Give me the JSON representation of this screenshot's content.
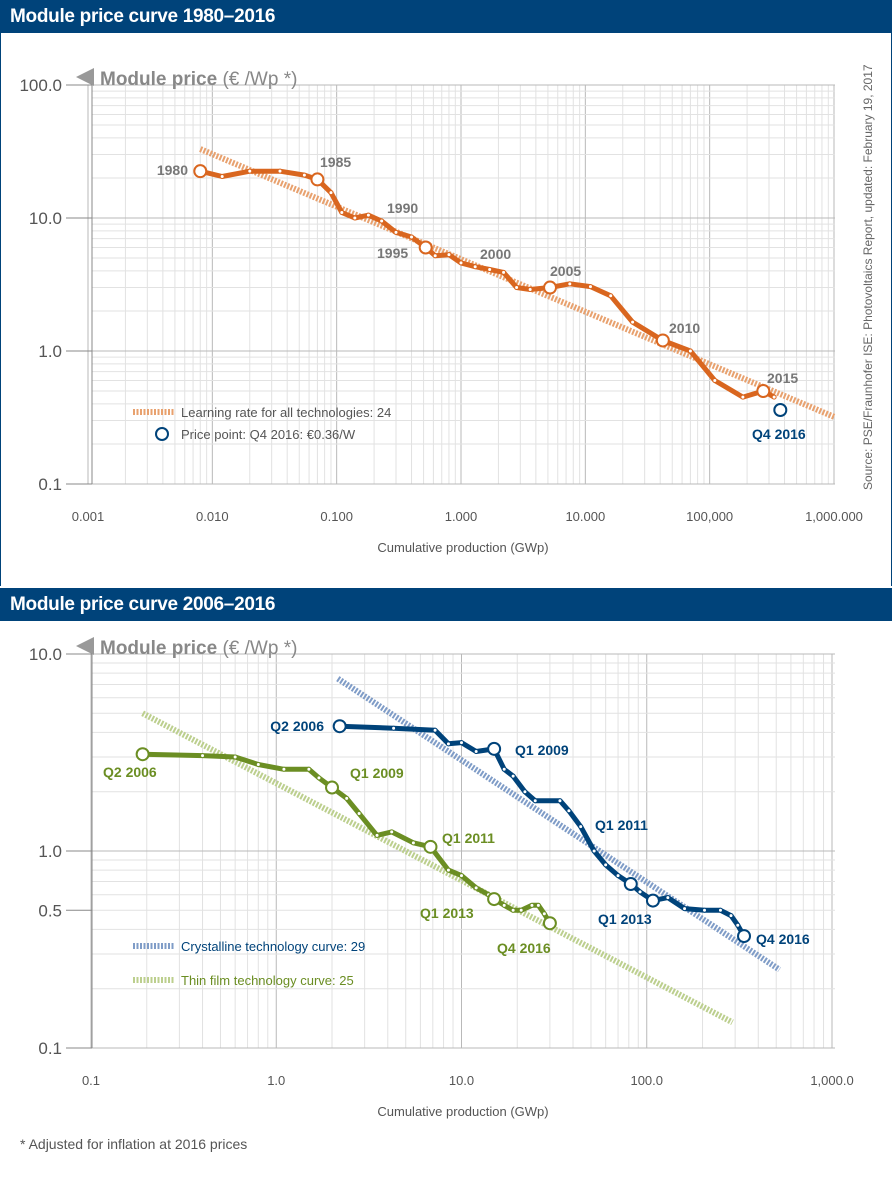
{
  "chart1": {
    "header": "Module price curve 1980–2016",
    "y_title_bold": "Module price",
    "y_title_unit": " (€ /Wp *)",
    "y_ticks": [
      "100.0",
      "10.0",
      "1.0",
      "0.1"
    ],
    "x_ticks": [
      "0.001",
      "0.010",
      "0.100",
      "1.000",
      "10.000",
      "100,000",
      "1,000.000"
    ],
    "x_label": "Cumulative production (GWp)",
    "source": "Source: PSE/Fraunhofer ISE: Photovoltaics Report, updated: February 19, 2017",
    "legend": {
      "learning": "Learning rate for all technologies: 24",
      "price_point": "Price point: Q4 2016: €0.36/W"
    },
    "year_labels": [
      "1980",
      "1985",
      "1990",
      "1995",
      "2000",
      "2005",
      "2010",
      "2015"
    ],
    "q4_label": "Q4 2016",
    "colors": {
      "orange": "#d9661f",
      "orange_trend": "#e8a16e",
      "navy": "#00437a",
      "grid": "#d8d8d8"
    }
  },
  "chart2": {
    "header": "Module price curve 2006–2016",
    "y_title_bold": "Module price",
    "y_title_unit": " (€ /Wp *)",
    "y_ticks": [
      "10.0",
      "1.0",
      "0.5",
      "0.1"
    ],
    "x_ticks": [
      "0.1",
      "1.0",
      "10.0",
      "100.0",
      "1,000.0"
    ],
    "x_label": "Cumulative production (GWp)",
    "legend": {
      "crystalline": "Crystalline technology curve: 29",
      "thin_film": "Thin film technology curve: 25"
    },
    "cryst_labels": [
      "Q2 2006",
      "Q1 2009",
      "Q1 2011",
      "Q1 2013",
      "Q4 2016"
    ],
    "thin_labels": [
      "Q2 2006",
      "Q1 2009",
      "Q1 2011",
      "Q1 2013",
      "Q4 2016"
    ],
    "colors": {
      "navy": "#00437a",
      "navy_trend": "#7f9cc7",
      "green": "#6b8e23",
      "green_trend": "#bccf8e"
    }
  },
  "footnote": "* Adjusted for inflation at 2016 prices",
  "chart_data": [
    {
      "type": "line",
      "title": "Module price curve 1980–2016",
      "xlabel": "Cumulative production (GWp)",
      "ylabel": "Module price (€ /Wp *)",
      "x_scale": "log",
      "y_scale": "log",
      "xlim": [
        0.001,
        1000
      ],
      "ylim": [
        0.1,
        100
      ],
      "grid": true,
      "legend_position": "bottom-left",
      "series": [
        {
          "name": "",
          "points": [
            [
              0.008,
              22.5
            ],
            [
              0.012,
              20.5
            ],
            [
              0.02,
              22.5
            ],
            [
              0.035,
              22.5
            ],
            [
              0.055,
              21
            ],
            [
              0.07,
              19.5
            ],
            [
              0.09,
              15.5
            ],
            [
              0.11,
              11
            ],
            [
              0.14,
              10
            ],
            [
              0.18,
              10.5
            ],
            [
              0.23,
              9.5
            ],
            [
              0.3,
              7.8
            ],
            [
              0.4,
              7.2
            ],
            [
              0.52,
              6
            ],
            [
              0.62,
              5.2
            ],
            [
              0.8,
              5.3
            ],
            [
              1.0,
              4.6
            ],
            [
              1.3,
              4.3
            ],
            [
              1.7,
              4.1
            ],
            [
              2.2,
              3.9
            ],
            [
              2.8,
              3.0
            ],
            [
              3.6,
              2.9
            ],
            [
              5.2,
              3.0
            ],
            [
              7.5,
              3.2
            ],
            [
              11,
              3.05
            ],
            [
              16,
              2.6
            ],
            [
              24,
              1.65
            ],
            [
              42,
              1.2
            ],
            [
              70,
              1.0
            ],
            [
              110,
              0.6
            ],
            [
              185,
              0.45
            ],
            [
              270,
              0.5
            ],
            [
              330,
              0.45
            ]
          ]
        },
        {
          "name": "Learning rate for all technologies: 24",
          "points": [
            [
              0.008,
              33
            ],
            [
              1000,
              0.32
            ]
          ]
        },
        {
          "name": "Price point: Q4 2016: €0.36/W",
          "points": [
            [
              370,
              0.36
            ]
          ]
        }
      ]
    },
    {
      "type": "line",
      "title": "Module price curve 2006–2016",
      "xlabel": "Cumulative production (GWp)",
      "ylabel": "Module price (€ /Wp *)",
      "x_scale": "log",
      "y_scale": "log",
      "xlim": [
        0.1,
        1000
      ],
      "ylim": [
        0.1,
        10
      ],
      "grid": true,
      "legend_position": "bottom-left",
      "series": [
        {
          "name": "",
          "color": "navy",
          "points": [
            [
              2.2,
              4.3
            ],
            [
              4.3,
              4.2
            ],
            [
              7.2,
              4.1
            ],
            [
              8.5,
              3.5
            ],
            [
              10,
              3.55
            ],
            [
              12,
              3.2
            ],
            [
              15,
              3.3
            ],
            [
              17,
              2.6
            ],
            [
              19,
              2.4
            ],
            [
              22,
              2.0
            ],
            [
              25,
              1.8
            ],
            [
              34,
              1.8
            ],
            [
              38,
              1.6
            ],
            [
              44,
              1.33
            ],
            [
              52,
              1.0
            ],
            [
              60,
              0.85
            ],
            [
              70,
              0.75
            ],
            [
              82,
              0.68
            ],
            [
              92,
              0.62
            ],
            [
              108,
              0.56
            ],
            [
              130,
              0.58
            ],
            [
              160,
              0.51
            ],
            [
              205,
              0.5
            ],
            [
              250,
              0.5
            ],
            [
              285,
              0.47
            ],
            [
              310,
              0.42
            ],
            [
              335,
              0.37
            ]
          ]
        },
        {
          "name": "",
          "color": "green",
          "points": [
            [
              0.19,
              3.1
            ],
            [
              0.4,
              3.05
            ],
            [
              0.6,
              3.0
            ],
            [
              0.8,
              2.75
            ],
            [
              1.1,
              2.6
            ],
            [
              1.5,
              2.6
            ],
            [
              1.7,
              2.35
            ],
            [
              2.0,
              2.1
            ],
            [
              2.4,
              1.85
            ],
            [
              2.8,
              1.55
            ],
            [
              3.5,
              1.2
            ],
            [
              4.2,
              1.25
            ],
            [
              5.5,
              1.1
            ],
            [
              6.8,
              1.05
            ],
            [
              8.5,
              0.8
            ],
            [
              10,
              0.75
            ],
            [
              12,
              0.65
            ],
            [
              14,
              0.6
            ],
            [
              15,
              0.57
            ],
            [
              17,
              0.53
            ],
            [
              19,
              0.5
            ],
            [
              21,
              0.5
            ],
            [
              24,
              0.53
            ],
            [
              26,
              0.53
            ],
            [
              28,
              0.48
            ],
            [
              30,
              0.43
            ]
          ]
        },
        {
          "name": "Crystalline technology curve: 29",
          "points": [
            [
              2.15,
              7.5
            ],
            [
              520,
              0.25
            ]
          ]
        },
        {
          "name": "Thin film technology curve: 25",
          "points": [
            [
              0.19,
              5.0
            ],
            [
              290,
              0.135
            ]
          ]
        }
      ]
    }
  ]
}
